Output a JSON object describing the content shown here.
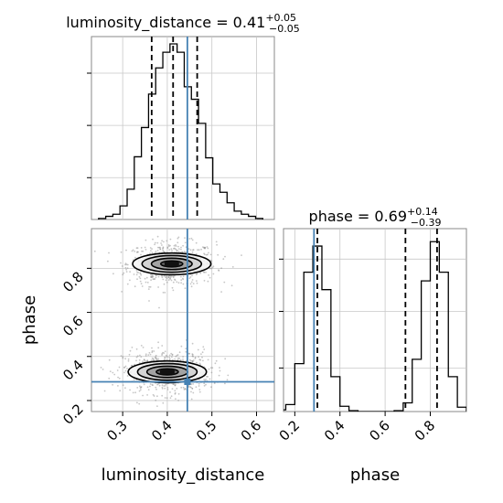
{
  "chart_data": {
    "type": "corner",
    "parameters": [
      "luminosity_distance",
      "phase"
    ],
    "truths": {
      "luminosity_distance": 0.445,
      "phase": 0.285
    },
    "panels": {
      "luminosity_distance_hist": {
        "title": {
          "prefix": "luminosity_distance = 0.41",
          "sup": "+0.05",
          "sub": "−0.05"
        },
        "x_ticks": [
          0.3,
          0.4,
          0.5,
          0.6
        ],
        "xlim": [
          0.23,
          0.64
        ],
        "quantiles": [
          0.365,
          0.413,
          0.467
        ],
        "bin_edges": [
          0.246,
          0.262,
          0.278,
          0.294,
          0.31,
          0.326,
          0.342,
          0.358,
          0.374,
          0.39,
          0.406,
          0.422,
          0.438,
          0.454,
          0.47,
          0.486,
          0.502,
          0.518,
          0.534,
          0.55,
          0.566,
          0.582,
          0.598,
          0.614
        ],
        "counts": [
          1,
          3,
          5,
          13,
          29,
          60,
          88,
          120,
          145,
          160,
          168,
          160,
          127,
          115,
          92,
          59,
          34,
          26,
          16,
          8,
          5,
          3,
          1
        ],
        "y_max": 175,
        "y_ticks": [
          40,
          90,
          140
        ]
      },
      "phase_hist": {
        "title": {
          "prefix": "phase = 0.69",
          "sup": "+0.14",
          "sub": "−0.39"
        },
        "x_ticks": [
          0.2,
          0.4,
          0.6,
          0.8
        ],
        "x_tick_labels": [
          "0.2",
          "0.4",
          "0.6",
          "0.8"
        ],
        "xlim": [
          0.15,
          0.96
        ],
        "quantiles": [
          0.3,
          0.69,
          0.83
        ],
        "bin_edges": [
          0.12,
          0.16,
          0.2,
          0.24,
          0.28,
          0.32,
          0.36,
          0.4,
          0.44,
          0.48,
          0.52,
          0.56,
          0.6,
          0.64,
          0.68,
          0.72,
          0.76,
          0.8,
          0.84,
          0.88,
          0.92,
          0.96,
          1.0
        ],
        "counts": [
          2,
          8,
          55,
          160,
          190,
          140,
          40,
          6,
          1,
          0,
          0,
          0,
          0,
          1,
          10,
          60,
          150,
          195,
          160,
          40,
          5,
          1
        ],
        "y_max": 210,
        "y_ticks": [
          50,
          115,
          175
        ]
      },
      "joint": {
        "xlim": [
          0.23,
          0.64
        ],
        "ylim": [
          0.15,
          0.98
        ],
        "x_ticks": [
          0.3,
          0.4,
          0.5,
          0.6
        ],
        "x_tick_labels": [
          "0.3",
          "0.4",
          "0.5",
          "0.6"
        ],
        "y_ticks": [
          0.2,
          0.4,
          0.6,
          0.8
        ],
        "y_tick_labels": [
          "0.2",
          "0.4",
          "0.6",
          "0.8"
        ],
        "xlabel": "luminosity_distance",
        "ylabel": "phase",
        "clusters": [
          {
            "center": [
              0.41,
              0.82
            ],
            "sx": 0.045,
            "sy": 0.055,
            "points": 650
          },
          {
            "center": [
              0.4,
              0.33
            ],
            "sx": 0.045,
            "sy": 0.055,
            "points": 650
          }
        ],
        "contour_sigmas": [
          0.7,
          1.3,
          1.9,
          2.5
        ]
      },
      "phase_xlabel": "phase"
    },
    "colors": {
      "truth": "#4682b4",
      "hist": "#000000",
      "grid": "#c8c8c8",
      "points": "#808080"
    }
  }
}
